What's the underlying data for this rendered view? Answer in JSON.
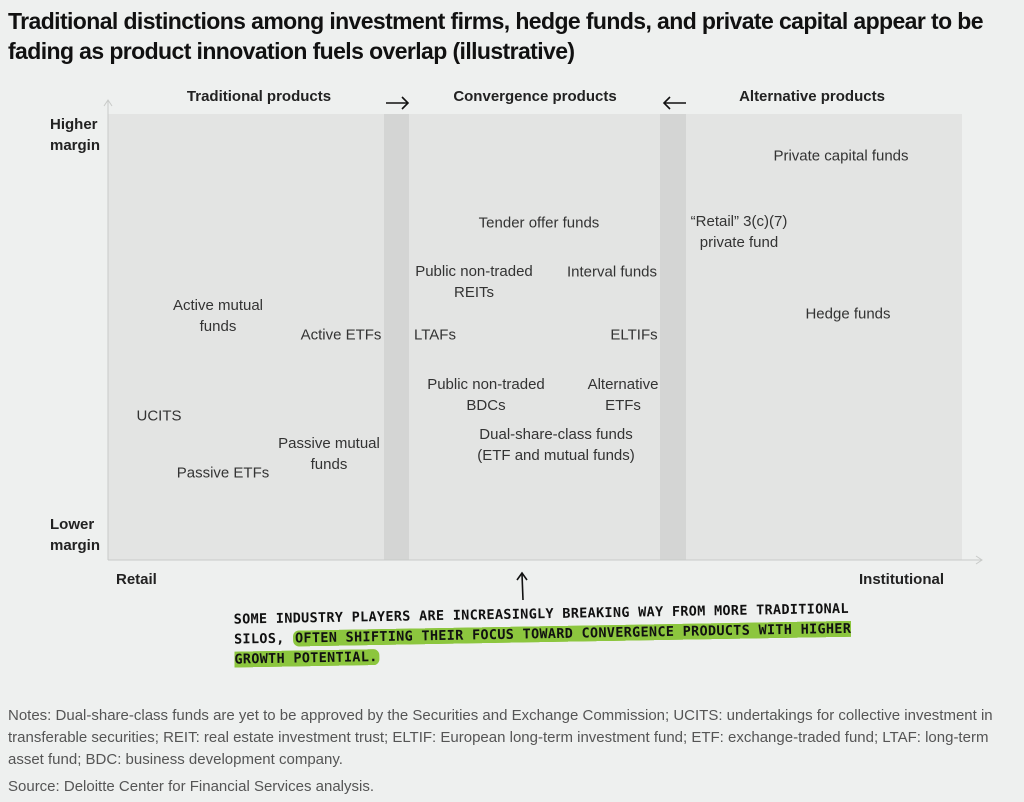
{
  "title": "Traditional distinctions among investment firms, hedge funds, and private capital appear to be fading as product innovation fuels overlap (illustrative)",
  "columns": [
    {
      "label": "Traditional products"
    },
    {
      "label": "Convergence products"
    },
    {
      "label": "Alternative products"
    }
  ],
  "y_axis": {
    "top": "Higher margin",
    "bottom": "Lower margin"
  },
  "x_axis": {
    "left": "Retail",
    "right": "Institutional"
  },
  "products": [
    {
      "label": "Private capital funds"
    },
    {
      "label": "“Retail” 3(c)(7) private fund"
    },
    {
      "label": "Tender offer funds"
    },
    {
      "label": "Public non-traded REITs"
    },
    {
      "label": "Interval funds"
    },
    {
      "label": "Hedge funds"
    },
    {
      "label": "Active mutual funds"
    },
    {
      "label": "Active ETFs"
    },
    {
      "label": "LTAFs"
    },
    {
      "label": "ELTIFs"
    },
    {
      "label": "Public non-traded BDCs"
    },
    {
      "label": "Alternative ETFs"
    },
    {
      "label": "Dual-share-class funds (ETF and mutual funds)"
    },
    {
      "label": "UCITS"
    },
    {
      "label": "Passive ETFs"
    },
    {
      "label": "Passive mutual funds"
    }
  ],
  "annotation": {
    "text": "SOME INDUSTRY PLAYERS ARE INCREASINGLY BREAKING WAY FROM MORE TRADITIONAL SILOS,",
    "highlight": "OFTEN SHIFTING THEIR FOCUS TOWARD CONVERGENCE PRODUCTS WITH HIGHER GROWTH POTENTIAL."
  },
  "notes": "Notes: Dual-share-class funds are yet to be approved by the Securities and Exchange Commission; UCITS: undertakings for collective investment in transferable securities; REIT: real estate investment trust; ELTIF: European long-term investment fund; ETF: exchange-traded fund; LTAF: long-term asset fund; BDC: business development company.",
  "source": "Source: Deloitte Center for Financial Services analysis."
}
